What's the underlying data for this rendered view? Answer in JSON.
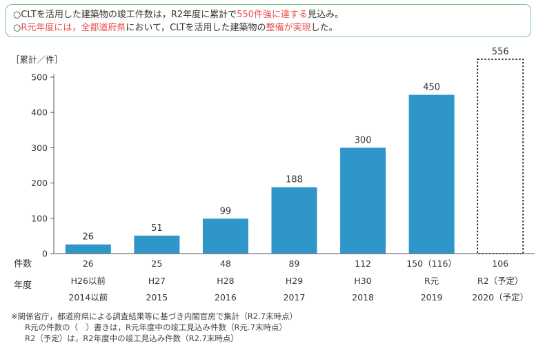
{
  "callout": {
    "line1": {
      "prefix": "○CLTを活用した建築物の竣工件数は，R2年度に累計で",
      "highlight": "550件強に達する",
      "suffix": "見込み。"
    },
    "line2": {
      "prefix": "○",
      "highlight1": "R元年度には，全都道府県",
      "mid": "において，CLTを活用した建築物の",
      "highlight2": "整備が実現",
      "suffix": "した。"
    }
  },
  "colors": {
    "bar": "#2e96c8",
    "highlight": "#e84f4f",
    "callout_border": "#7cc68a",
    "axis": "#555555"
  },
  "chart_data": {
    "type": "bar",
    "ylabel": "［累計／件］",
    "ylim": [
      0,
      500
    ],
    "yticks": [
      "0",
      "100",
      "200",
      "300",
      "400",
      "500"
    ],
    "categories": [
      "H26以前",
      "H27",
      "H28",
      "H29",
      "H30",
      "R元",
      "R2（予定）"
    ],
    "categories_year": [
      "2014以前",
      "2015",
      "2016",
      "2017",
      "2018",
      "2019",
      "2020（予定）"
    ],
    "values": [
      26,
      51,
      99,
      188,
      300,
      450,
      556
    ],
    "data_labels": [
      "26",
      "51",
      "99",
      "188",
      "300",
      "450",
      "556"
    ],
    "projected_index": 6,
    "row_label_count": "件数",
    "row_label_year": "年度",
    "counts": [
      "26",
      "25",
      "48",
      "89",
      "112",
      "150（116）",
      "106"
    ]
  },
  "notes": [
    "※関係省庁，都道府県による調査結果等に基づき内閣官房で集計（R2.7末時点）",
    "R元の件数の（　）書きは，R元年度中の竣工見込み件数（R元.7末時点）",
    "R2（予定）は，R2年度中の竣工見込み件数（R2.7末時点）"
  ]
}
